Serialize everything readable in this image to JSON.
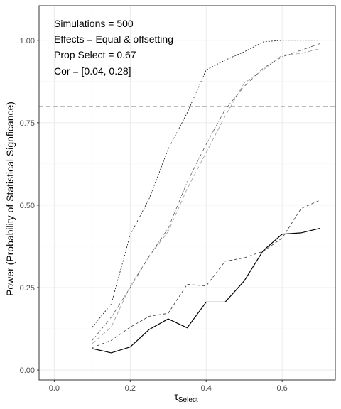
{
  "chart_data": {
    "type": "line",
    "xlabel_main": "τ",
    "xlabel_sub": "Select",
    "ylabel": "Power (Probability of Statistical Signficance)",
    "xlim": [
      -0.04,
      0.74
    ],
    "ylim": [
      -0.03,
      1.105
    ],
    "x_ticks": [
      0.0,
      0.2,
      0.4,
      0.6
    ],
    "x_tick_labels": [
      "0.0",
      "0.2",
      "0.4",
      "0.6"
    ],
    "y_ticks": [
      0.0,
      0.25,
      0.5,
      0.75,
      1.0
    ],
    "y_tick_labels": [
      "0.00",
      "0.25",
      "0.50",
      "0.75",
      "1.00"
    ],
    "grid": true,
    "hline": 0.8,
    "annotations": [
      "Simulations = 500",
      "Effects = Equal & offsetting",
      "Prop Select = 0.67",
      "Cor = [0.04, 0.28]"
    ],
    "x": [
      0.1,
      0.15,
      0.2,
      0.25,
      0.3,
      0.35,
      0.4,
      0.45,
      0.5,
      0.55,
      0.6,
      0.65,
      0.7
    ],
    "series": [
      {
        "values": [
          0.065,
          0.052,
          0.07,
          0.123,
          0.155,
          0.128,
          0.206,
          0.206,
          0.27,
          0.362,
          0.412,
          0.416,
          0.43
        ],
        "color": "#000000",
        "dash": "solid",
        "width": 1.2
      },
      {
        "values": [
          0.068,
          0.09,
          0.13,
          0.163,
          0.172,
          0.26,
          0.255,
          0.33,
          0.34,
          0.36,
          0.4,
          0.49,
          0.515
        ],
        "color": "#333333",
        "dash": "4,3",
        "width": 0.8
      },
      {
        "values": [
          0.13,
          0.2,
          0.41,
          0.52,
          0.67,
          0.78,
          0.91,
          0.94,
          0.965,
          0.995,
          1.0,
          1.0,
          1.0
        ],
        "color": "#111111",
        "dash": "2,2",
        "width": 0.8
      },
      {
        "values": [
          0.08,
          0.13,
          0.255,
          0.345,
          0.42,
          0.55,
          0.66,
          0.77,
          0.87,
          0.91,
          0.955,
          0.96,
          0.975
        ],
        "color": "#999999",
        "dash": "6,3",
        "width": 0.8
      },
      {
        "values": [
          0.09,
          0.16,
          0.25,
          0.345,
          0.43,
          0.57,
          0.685,
          0.79,
          0.86,
          0.915,
          0.95,
          0.97,
          0.99
        ],
        "color": "#555555",
        "dash": "5,2,1,2",
        "width": 0.8
      }
    ]
  }
}
